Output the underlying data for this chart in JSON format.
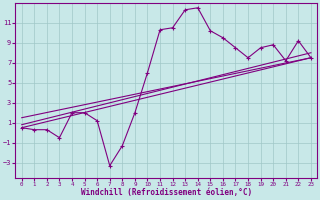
{
  "xlabel": "Windchill (Refroidissement éolien,°C)",
  "ylabel": "",
  "bg_color": "#c8e8e8",
  "line_color": "#800080",
  "grid_color": "#a0c8c8",
  "x_data": [
    0,
    1,
    2,
    3,
    4,
    5,
    6,
    7,
    8,
    9,
    10,
    11,
    12,
    13,
    14,
    15,
    16,
    17,
    18,
    19,
    20,
    21,
    22,
    23
  ],
  "y_main": [
    0.5,
    0.3,
    0.3,
    -0.5,
    2.0,
    2.0,
    1.2,
    -3.3,
    -1.3,
    2.0,
    6.0,
    10.3,
    10.5,
    12.3,
    12.5,
    10.2,
    9.5,
    8.5,
    7.5,
    8.5,
    8.8,
    7.2,
    9.2,
    7.5
  ],
  "straight_lines": [
    {
      "x": [
        0,
        23
      ],
      "y": [
        0.5,
        7.5
      ]
    },
    {
      "x": [
        0,
        23
      ],
      "y": [
        0.8,
        8.0
      ]
    },
    {
      "x": [
        0,
        23
      ],
      "y": [
        1.5,
        7.5
      ]
    }
  ],
  "xlim": [
    -0.5,
    23.5
  ],
  "ylim": [
    -4.5,
    13
  ],
  "yticks": [
    -3,
    -1,
    1,
    3,
    5,
    7,
    9,
    11
  ],
  "xticks": [
    0,
    1,
    2,
    3,
    4,
    5,
    6,
    7,
    8,
    9,
    10,
    11,
    12,
    13,
    14,
    15,
    16,
    17,
    18,
    19,
    20,
    21,
    22,
    23
  ],
  "tick_fontsize": 5,
  "xlabel_fontsize": 5.5,
  "linewidth": 0.8
}
